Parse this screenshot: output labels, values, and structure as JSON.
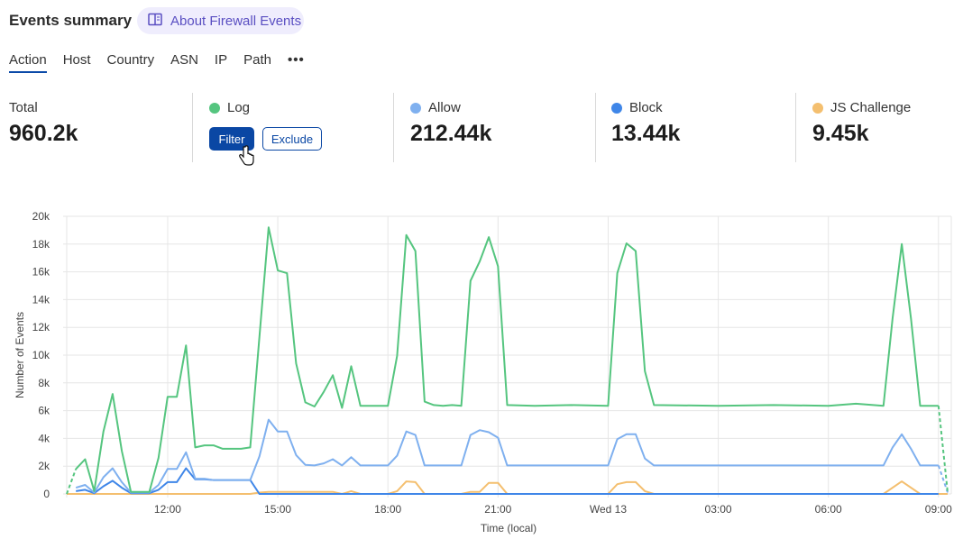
{
  "header": {
    "title": "Events summary",
    "about_label": "About Firewall Events",
    "about_icon": "book-icon"
  },
  "tabs": [
    {
      "label": "Action",
      "active": true
    },
    {
      "label": "Host"
    },
    {
      "label": "Country"
    },
    {
      "label": "ASN"
    },
    {
      "label": "IP"
    },
    {
      "label": "Path"
    }
  ],
  "more_label": "•••",
  "stats": {
    "total": {
      "label": "Total",
      "value": "960.2k"
    },
    "log": {
      "label": "Log",
      "color": "#55c57f",
      "filter_label": "Filter",
      "exclude_label": "Exclude"
    },
    "allow": {
      "label": "Allow",
      "value": "212.44k",
      "color": "#7fb0ef"
    },
    "block": {
      "label": "Block",
      "value": "13.44k",
      "color": "#3f86e8"
    },
    "js_challenge": {
      "label": "JS Challenge",
      "value": "9.45k",
      "color": "#f4bf6f"
    }
  },
  "chart_data": {
    "type": "line",
    "xlabel": "Time (local)",
    "ylabel": "Number of Events",
    "xlim": [
      "09:15",
      "09:15"
    ],
    "ylim": [
      0,
      20000
    ],
    "y_ticks": [
      "0",
      "2k",
      "4k",
      "6k",
      "8k",
      "10k",
      "12k",
      "14k",
      "16k",
      "18k",
      "20k"
    ],
    "x_ticks": [
      {
        "t": "12:00",
        "label": "12:00"
      },
      {
        "t": "15:00",
        "label": "15:00"
      },
      {
        "t": "18:00",
        "label": "18:00"
      },
      {
        "t": "21:00",
        "label": "21:00"
      },
      {
        "t": "00:00",
        "label": "Wed 13"
      },
      {
        "t": "03:00",
        "label": "03:00"
      },
      {
        "t": "06:00",
        "label": "06:00"
      },
      {
        "t": "09:00",
        "label": "09:00"
      }
    ],
    "grid": true,
    "series": [
      {
        "name": "Log",
        "color": "#55c57f",
        "points": [
          [
            "09:15",
            0
          ],
          [
            "09:30",
            1800
          ],
          [
            "09:45",
            2500
          ],
          [
            "10:00",
            200
          ],
          [
            "10:15",
            4500
          ],
          [
            "10:30",
            7200
          ],
          [
            "10:45",
            3100
          ],
          [
            "11:00",
            150
          ],
          [
            "11:30",
            150
          ],
          [
            "11:45",
            2600
          ],
          [
            "12:00",
            7000
          ],
          [
            "12:15",
            7000
          ],
          [
            "12:30",
            10700
          ],
          [
            "12:45",
            3350
          ],
          [
            "13:00",
            3500
          ],
          [
            "13:15",
            3500
          ],
          [
            "13:30",
            3250
          ],
          [
            "14:00",
            3250
          ],
          [
            "14:15",
            3350
          ],
          [
            "14:30",
            11300
          ],
          [
            "14:45",
            19200
          ],
          [
            "15:00",
            16100
          ],
          [
            "15:15",
            15900
          ],
          [
            "15:30",
            9400
          ],
          [
            "15:45",
            6600
          ],
          [
            "16:00",
            6300
          ],
          [
            "16:15",
            7350
          ],
          [
            "16:30",
            8550
          ],
          [
            "16:45",
            6200
          ],
          [
            "17:00",
            9200
          ],
          [
            "17:15",
            6350
          ],
          [
            "18:00",
            6350
          ],
          [
            "18:15",
            9950
          ],
          [
            "18:30",
            18650
          ],
          [
            "18:45",
            17500
          ],
          [
            "19:00",
            6650
          ],
          [
            "19:15",
            6400
          ],
          [
            "19:30",
            6350
          ],
          [
            "19:45",
            6400
          ],
          [
            "20:00",
            6350
          ],
          [
            "20:15",
            15350
          ],
          [
            "20:30",
            16750
          ],
          [
            "20:45",
            18500
          ],
          [
            "21:00",
            16400
          ],
          [
            "21:15",
            6400
          ],
          [
            "22:00",
            6350
          ],
          [
            "23:00",
            6400
          ],
          [
            "00:00",
            6350
          ],
          [
            "00:15",
            15900
          ],
          [
            "00:30",
            18050
          ],
          [
            "00:45",
            17500
          ],
          [
            "01:00",
            8850
          ],
          [
            "01:15",
            6400
          ],
          [
            "03:00",
            6350
          ],
          [
            "04:30",
            6400
          ],
          [
            "06:00",
            6350
          ],
          [
            "06:45",
            6500
          ],
          [
            "07:30",
            6350
          ],
          [
            "07:45",
            12650
          ],
          [
            "08:00",
            18000
          ],
          [
            "08:15",
            12650
          ],
          [
            "08:30",
            6350
          ],
          [
            "09:00",
            6350
          ],
          [
            "09:15",
            100
          ]
        ]
      },
      {
        "name": "Allow",
        "color": "#7fb0ef",
        "points": [
          [
            "09:30",
            450
          ],
          [
            "09:45",
            650
          ],
          [
            "10:00",
            100
          ],
          [
            "10:15",
            1200
          ],
          [
            "10:30",
            1850
          ],
          [
            "10:45",
            850
          ],
          [
            "11:00",
            100
          ],
          [
            "11:30",
            100
          ],
          [
            "11:45",
            650
          ],
          [
            "12:00",
            1800
          ],
          [
            "12:15",
            1800
          ],
          [
            "12:30",
            3000
          ],
          [
            "12:45",
            1100
          ],
          [
            "13:00",
            1100
          ],
          [
            "13:15",
            1000
          ],
          [
            "14:15",
            1000
          ],
          [
            "14:30",
            2700
          ],
          [
            "14:45",
            5350
          ],
          [
            "15:00",
            4500
          ],
          [
            "15:15",
            4500
          ],
          [
            "15:30",
            2800
          ],
          [
            "15:45",
            2100
          ],
          [
            "16:00",
            2050
          ],
          [
            "16:15",
            2200
          ],
          [
            "16:30",
            2500
          ],
          [
            "16:45",
            2050
          ],
          [
            "17:00",
            2650
          ],
          [
            "17:15",
            2050
          ],
          [
            "18:00",
            2050
          ],
          [
            "18:15",
            2750
          ],
          [
            "18:30",
            4500
          ],
          [
            "18:45",
            4250
          ],
          [
            "19:00",
            2050
          ],
          [
            "20:00",
            2050
          ],
          [
            "20:15",
            4250
          ],
          [
            "20:30",
            4600
          ],
          [
            "20:45",
            4450
          ],
          [
            "21:00",
            4050
          ],
          [
            "21:15",
            2050
          ],
          [
            "00:00",
            2050
          ],
          [
            "00:15",
            3950
          ],
          [
            "00:30",
            4300
          ],
          [
            "00:45",
            4300
          ],
          [
            "01:00",
            2550
          ],
          [
            "01:15",
            2050
          ],
          [
            "07:30",
            2050
          ],
          [
            "07:45",
            3350
          ],
          [
            "08:00",
            4300
          ],
          [
            "08:15",
            3250
          ],
          [
            "08:30",
            2050
          ],
          [
            "09:00",
            2050
          ],
          [
            "09:15",
            100
          ]
        ]
      },
      {
        "name": "Block",
        "color": "#3f86e8",
        "points": [
          [
            "09:30",
            200
          ],
          [
            "09:45",
            300
          ],
          [
            "10:00",
            50
          ],
          [
            "10:15",
            550
          ],
          [
            "10:30",
            950
          ],
          [
            "10:45",
            450
          ],
          [
            "11:00",
            50
          ],
          [
            "11:30",
            50
          ],
          [
            "11:45",
            300
          ],
          [
            "12:00",
            850
          ],
          [
            "12:15",
            850
          ],
          [
            "12:30",
            1850
          ],
          [
            "12:45",
            1050
          ],
          [
            "13:00",
            1050
          ],
          [
            "13:15",
            1000
          ],
          [
            "14:15",
            1000
          ],
          [
            "14:30",
            0
          ],
          [
            "09:00",
            0
          ]
        ]
      },
      {
        "name": "JS Challenge",
        "color": "#f4bf6f",
        "points": [
          [
            "09:15",
            0
          ],
          [
            "14:15",
            0
          ],
          [
            "14:30",
            100
          ],
          [
            "14:45",
            150
          ],
          [
            "16:30",
            150
          ],
          [
            "16:45",
            0
          ],
          [
            "17:00",
            200
          ],
          [
            "17:15",
            0
          ],
          [
            "18:00",
            0
          ],
          [
            "18:15",
            200
          ],
          [
            "18:30",
            900
          ],
          [
            "18:45",
            850
          ],
          [
            "19:00",
            0
          ],
          [
            "20:00",
            0
          ],
          [
            "20:15",
            150
          ],
          [
            "20:30",
            150
          ],
          [
            "20:45",
            800
          ],
          [
            "21:00",
            800
          ],
          [
            "21:15",
            0
          ],
          [
            "00:00",
            0
          ],
          [
            "00:15",
            700
          ],
          [
            "00:30",
            850
          ],
          [
            "00:45",
            850
          ],
          [
            "01:00",
            200
          ],
          [
            "01:15",
            0
          ],
          [
            "07:30",
            0
          ],
          [
            "08:00",
            900
          ],
          [
            "08:30",
            0
          ],
          [
            "09:15",
            0
          ]
        ]
      }
    ]
  }
}
